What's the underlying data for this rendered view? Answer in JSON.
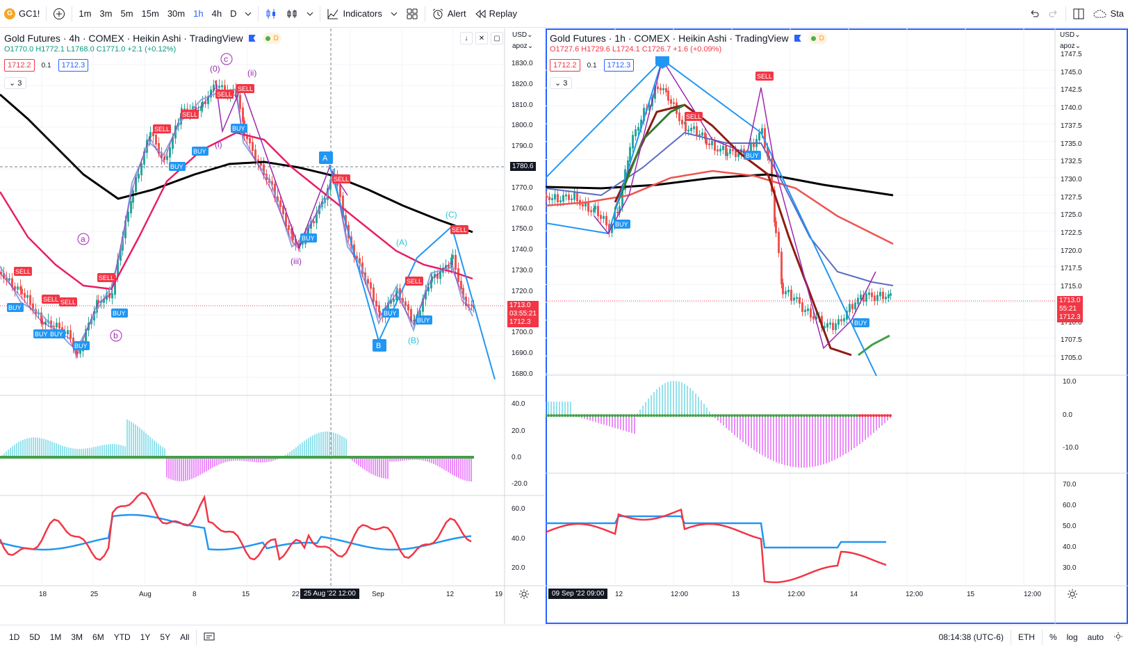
{
  "topbar": {
    "symbol": "GC1!",
    "intervals": [
      "1m",
      "3m",
      "5m",
      "15m",
      "30m",
      "1h",
      "4h",
      "D"
    ],
    "selected_interval": "1h",
    "indicators_label": "Indicators",
    "alert_label": "Alert",
    "replay_label": "Replay",
    "right_label": "Sta"
  },
  "left_pane": {
    "title": "Gold Futures · 4h · COMEX · Heikin Ashi · TradingView",
    "ohlc": {
      "o": "O1770.0",
      "h": "H1772.1",
      "l": "L1768.0",
      "c": "C1771.0",
      "chg": "+2.1 (+0.12%)"
    },
    "bid": "1712.2",
    "spread": "0.1",
    "ask": "1712.3",
    "collapse": "3",
    "currency": "USD",
    "scale_mode": "apoz",
    "price_ticks": [
      "1830.0",
      "1820.0",
      "1810.0",
      "1800.0",
      "1790.0",
      "1780.0",
      "1770.0",
      "1760.0",
      "1750.0",
      "1740.0",
      "1730.0",
      "1720.0",
      "1710.0",
      "1700.0",
      "1690.0",
      "1680.0"
    ],
    "crosshair_price": "1780.6",
    "last_price": "1713.0",
    "countdown": "03:55:21",
    "bid_tag": "1712.3",
    "osc1_ticks": [
      "40.0",
      "20.0",
      "0.0",
      "-20.0"
    ],
    "osc2_ticks": [
      "60.0",
      "40.0",
      "20.0"
    ],
    "time_ticks": [
      "18",
      "25",
      "Aug",
      "8",
      "15",
      "22",
      "Sep",
      "12",
      "19"
    ],
    "crosshair_time": "25 Aug '22   12:00",
    "wave_labels": [
      "(0)",
      "c",
      "(ii)",
      "(i)",
      "(iii)",
      "a",
      "b",
      "(A)",
      "(B)",
      "(C)",
      "A",
      "B"
    ],
    "signals": [
      "SELL",
      "BUY"
    ]
  },
  "right_pane": {
    "title": "Gold Futures · 1h · COMEX · Heikin Ashi · TradingView",
    "ohlc": {
      "o": "O1727.6",
      "h": "H1729.6",
      "l": "L1724.1",
      "c": "C1726.7",
      "chg": "+1.6 (+0.09%)"
    },
    "bid": "1712.2",
    "spread": "0.1",
    "ask": "1712.3",
    "collapse": "3",
    "currency": "USD",
    "scale_mode": "apoz",
    "price_ticks": [
      "1747.5",
      "1745.0",
      "1742.5",
      "1740.0",
      "1737.5",
      "1735.0",
      "1732.5",
      "1730.0",
      "1727.5",
      "1725.0",
      "1722.5",
      "1720.0",
      "1717.5",
      "1715.0",
      "1712.5",
      "1710.0",
      "1707.5",
      "1705.0"
    ],
    "last_price": "1713.0",
    "countdown": "55:21",
    "bid_tag": "1712.3",
    "osc1_ticks": [
      "10.0",
      "0.0",
      "-10.0"
    ],
    "osc2_ticks": [
      "70.0",
      "60.0",
      "50.0",
      "40.0",
      "30.0"
    ],
    "time_ticks": [
      "12",
      "12:00",
      "13",
      "12:00",
      "14",
      "12:00",
      "15",
      "12:00"
    ],
    "crosshair_time": "09 Sep '22   09:00"
  },
  "bottombar": {
    "ranges": [
      "1D",
      "5D",
      "1M",
      "3M",
      "6M",
      "YTD",
      "1Y",
      "5Y",
      "All"
    ],
    "clock": "08:14:38 (UTC-6)",
    "session": "ETH",
    "pct": "%",
    "log": "log",
    "auto": "auto"
  },
  "colors": {
    "up": "#089981",
    "down": "#f23645",
    "blue": "#2962ff",
    "ma_black": "#000000",
    "ma_red": "#e91e63",
    "wave_purple": "#9c27b0",
    "wave_cyan": "#00bcd4"
  }
}
